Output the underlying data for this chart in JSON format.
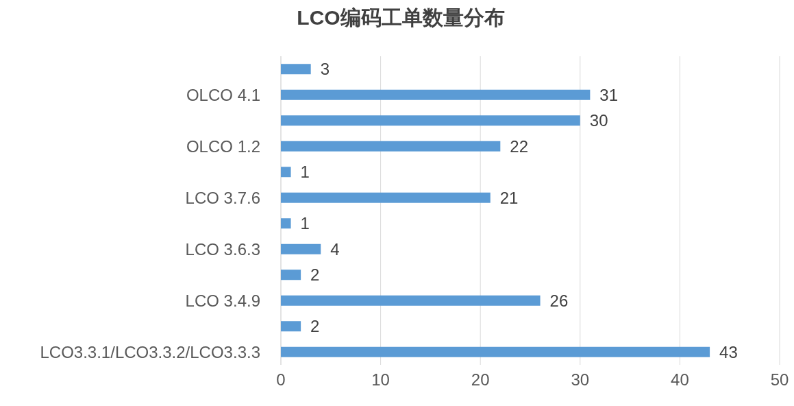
{
  "chart_data": {
    "type": "bar",
    "title": "LCO编码工单数量分布",
    "orientation": "horizontal",
    "categories": [
      null,
      "OLCO 4.1",
      null,
      "OLCO 1.2",
      null,
      "LCO 3.7.6",
      null,
      "LCO 3.6.3",
      null,
      "LCO 3.4.9",
      null,
      "LCO3.3.1/LCO3.3.2/LCO3.3.3"
    ],
    "values": [
      3,
      31,
      30,
      22,
      1,
      21,
      1,
      4,
      2,
      26,
      2,
      43
    ],
    "color": "#5b9bd5",
    "xlim": [
      0,
      50
    ],
    "xticks": [
      0,
      10,
      20,
      30,
      40,
      50
    ],
    "grid": "x",
    "data_labels": true
  }
}
